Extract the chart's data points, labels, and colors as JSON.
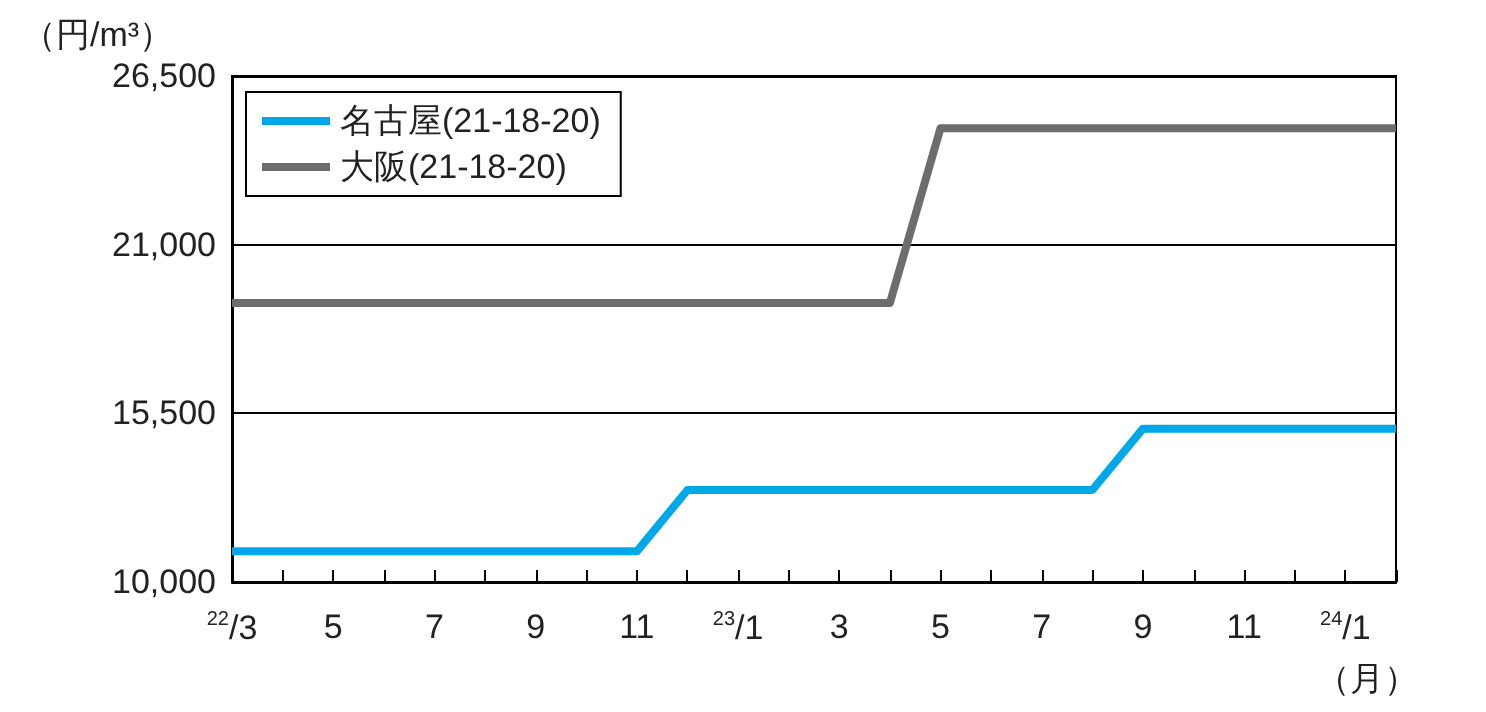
{
  "chart_data": {
    "type": "line",
    "ylabel": "（円/m³）",
    "xlabel": "（月）",
    "categories": [
      "$^{22}$/3",
      null,
      "5",
      null,
      "7",
      null,
      "9",
      null,
      "11",
      null,
      "$^{23}$/1",
      null,
      "3",
      null,
      "5",
      null,
      "7",
      null,
      "9",
      null,
      "11",
      null,
      "$^{24}$/1",
      null
    ],
    "series": [
      {
        "name": "名古屋(21-18-20)",
        "color": "#00a8e8",
        "values": [
          11000,
          11000,
          11000,
          11000,
          11000,
          11000,
          11000,
          11000,
          11000,
          13000,
          13000,
          13000,
          13000,
          13000,
          13000,
          13000,
          13000,
          13000,
          15000,
          15000,
          15000,
          15000,
          15000,
          15000
        ]
      },
      {
        "name": "大阪(21-18-20)",
        "color": "#6d6d6d",
        "values": [
          19100,
          19100,
          19100,
          19100,
          19100,
          19100,
          19100,
          19100,
          19100,
          19100,
          19100,
          19100,
          19100,
          19100,
          24800,
          24800,
          24800,
          24800,
          24800,
          24800,
          24800,
          24800,
          24800,
          24800
        ]
      }
    ],
    "ylim": [
      10000,
      26500
    ],
    "yticks": [
      {
        "value": 10000,
        "label": "10,000"
      },
      {
        "value": 15500,
        "label": "15,500"
      },
      {
        "value": 21000,
        "label": "21,000"
      },
      {
        "value": 26500,
        "label": "26,500"
      }
    ],
    "grid": "y",
    "legend": "top left",
    "marker": "none",
    "line_style": "solid"
  }
}
